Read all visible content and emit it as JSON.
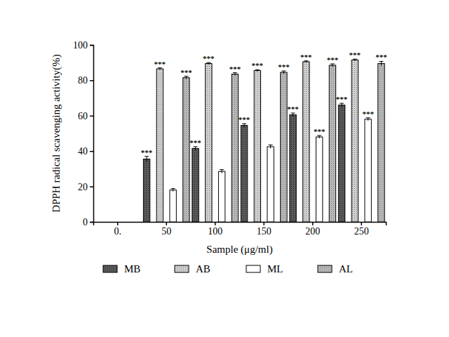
{
  "chart_data": {
    "type": "bar",
    "x_label": "Sample (μg/ml)",
    "y_label": "DPPH radical scavenging activity(%)",
    "categories": [
      "0.",
      "50",
      "100",
      "150",
      "200",
      "250"
    ],
    "ylim": [
      0,
      100
    ],
    "yticks": [
      0,
      20,
      40,
      60,
      80,
      100
    ],
    "grid": false,
    "legend": "bottom",
    "series": [
      {
        "name": "MB",
        "color": "#5a5a5a",
        "values": [
          null,
          35.5,
          41.5,
          54.5,
          60.5,
          66
        ],
        "errors": [
          null,
          1.5,
          1,
          1,
          1,
          1
        ],
        "annotations": [
          null,
          "***",
          "***",
          "***",
          "***",
          "***"
        ]
      },
      {
        "name": "AB",
        "color": "#d0d0d0",
        "values": [
          null,
          86.5,
          89.5,
          85.5,
          90.5,
          91.5
        ],
        "errors": [
          null,
          0.5,
          0.5,
          0.5,
          0.5,
          0.5
        ],
        "annotations": [
          null,
          "***",
          "***",
          "***",
          "***",
          "***"
        ]
      },
      {
        "name": "ML",
        "color": "#ffffff",
        "values": [
          null,
          18,
          28.5,
          42.5,
          48,
          58
        ],
        "errors": [
          null,
          0.8,
          1,
          1,
          0.8,
          0.8
        ],
        "annotations": [
          null,
          null,
          null,
          null,
          "***",
          "***"
        ]
      },
      {
        "name": "AL",
        "color": "#b8b8b8",
        "values": [
          null,
          81.5,
          83.5,
          84.5,
          88.5,
          89.5
        ],
        "errors": [
          null,
          0.8,
          0.8,
          0.8,
          0.8,
          1.2
        ],
        "annotations": [
          null,
          "***",
          "***",
          "***",
          "***",
          "***"
        ]
      }
    ]
  }
}
